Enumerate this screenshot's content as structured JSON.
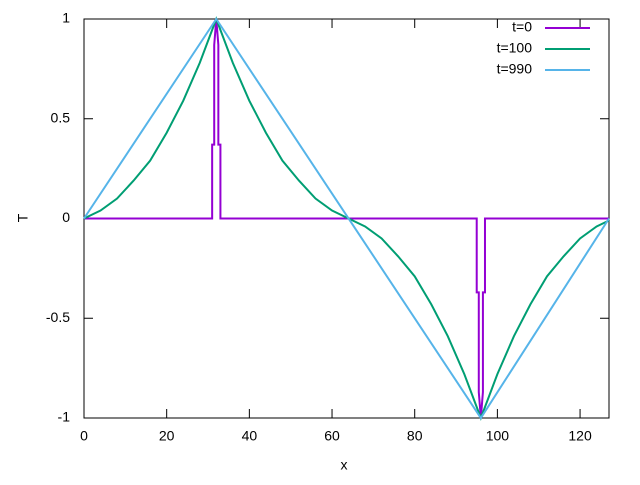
{
  "chart_data": {
    "type": "line",
    "xlabel": "x",
    "ylabel": "T",
    "xlim": [
      0,
      127
    ],
    "ylim": [
      -1,
      1
    ],
    "xticks": [
      0,
      20,
      40,
      60,
      80,
      100,
      120
    ],
    "yticks": [
      -1,
      -0.5,
      0,
      0.5,
      1
    ],
    "legend": "top-right",
    "series": [
      {
        "name": "t=0",
        "color": "#9400d3",
        "x": [
          0,
          31,
          31,
          31.5,
          31.5,
          32,
          32.5,
          32.5,
          33,
          33,
          95,
          95,
          95.5,
          95.5,
          96,
          96.5,
          96.5,
          97,
          97,
          127
        ],
        "values": [
          0,
          0,
          0.37,
          0.37,
          0.87,
          1,
          0.87,
          0.37,
          0.37,
          0,
          0,
          -0.37,
          -0.37,
          -0.87,
          -1,
          -0.87,
          -0.37,
          -0.37,
          0,
          0
        ]
      },
      {
        "name": "t=100",
        "color": "#009e73",
        "x": [
          0,
          4,
          8,
          12,
          16,
          20,
          24,
          28,
          32,
          36,
          40,
          44,
          48,
          52,
          56,
          60,
          64,
          68,
          72,
          76,
          80,
          84,
          88,
          92,
          96,
          100,
          104,
          108,
          112,
          116,
          120,
          124,
          127
        ],
        "values": [
          0,
          0.04,
          0.1,
          0.19,
          0.29,
          0.43,
          0.59,
          0.78,
          1,
          0.78,
          0.59,
          0.43,
          0.29,
          0.19,
          0.1,
          0.04,
          0,
          -0.04,
          -0.1,
          -0.19,
          -0.29,
          -0.43,
          -0.59,
          -0.78,
          -1,
          -0.78,
          -0.59,
          -0.43,
          -0.29,
          -0.19,
          -0.1,
          -0.04,
          -0.01
        ]
      },
      {
        "name": "t=990",
        "color": "#56b4e9",
        "x": [
          0,
          32,
          96,
          127
        ],
        "values": [
          0,
          1,
          -1,
          0
        ]
      }
    ]
  }
}
